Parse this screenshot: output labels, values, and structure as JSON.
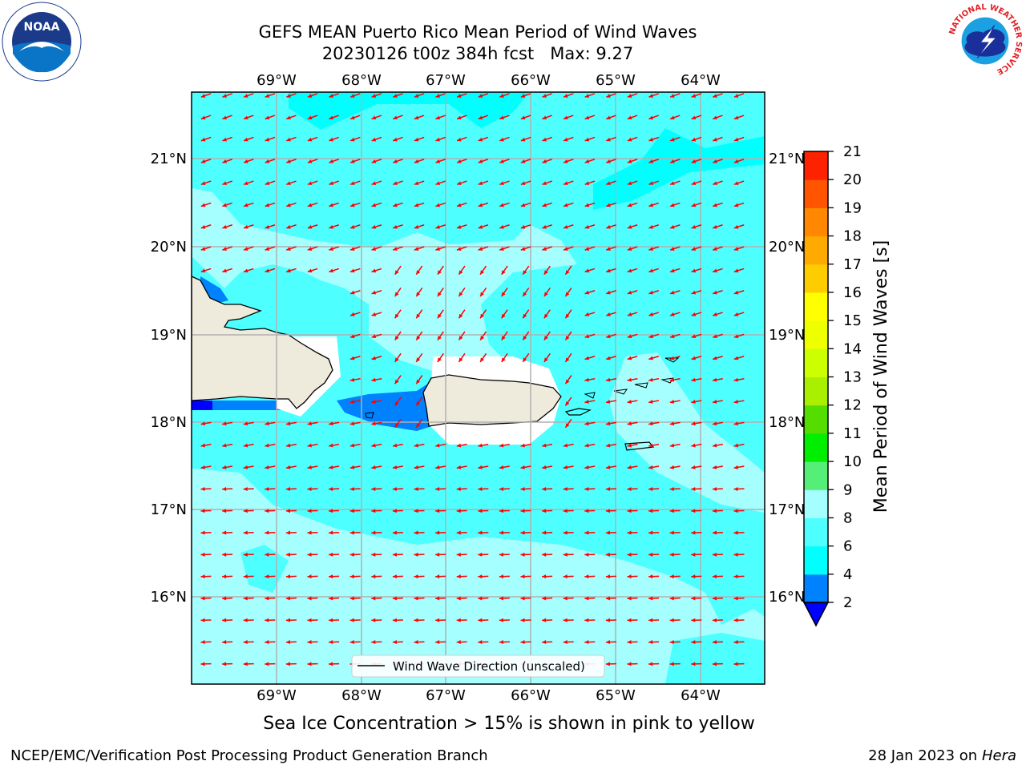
{
  "title": {
    "line1": "GEFS MEAN Puerto Rico Mean Period of Wind Waves",
    "line2_date": "20230126 t00z 384h fcst",
    "line2_max": "Max: 9.27"
  },
  "subtitle": "Sea Ice Concentration > 15% is shown in pink to yellow",
  "footer": {
    "left": "NCEP/EMC/Verification Post Processing Product Generation Branch",
    "right_date": "28 Jan 2023 on",
    "right_host": "Hera"
  },
  "logos": {
    "noaa_text": "NOAA",
    "nws_ring_text": "NATIONAL WEATHER SERVICE"
  },
  "map": {
    "lon_labels": [
      "69°W",
      "68°W",
      "67°W",
      "66°W",
      "65°W",
      "64°W"
    ],
    "lat_labels": [
      "21°N",
      "20°N",
      "19°N",
      "18°N",
      "17°N",
      "16°N"
    ],
    "legend": "Wind Wave Direction (unscaled)",
    "colors": {
      "ocean_6_8": "#4dffff",
      "ocean_8_9": "#a5ffff",
      "ocean_4_6": "#00ffff",
      "ocean_2_4": "#0082ff",
      "land": "#efebdc",
      "arrow": "#ff0000"
    }
  },
  "colorbar": {
    "label": "Mean Period of Wind Waves [s]",
    "ticks": [
      "2",
      "4",
      "6",
      "8",
      "9",
      "10",
      "11",
      "12",
      "13",
      "14",
      "15",
      "16",
      "17",
      "18",
      "19",
      "20",
      "21"
    ],
    "colors": [
      "#0082ff",
      "#00ffff",
      "#4dffff",
      "#a5ffff",
      "#55ee77",
      "#00ee00",
      "#55dd00",
      "#aaee00",
      "#ccff00",
      "#eeff00",
      "#ffff00",
      "#ffcc00",
      "#ffaa00",
      "#ff8800",
      "#ff5500",
      "#ff2200"
    ],
    "under_color": "#0000ff"
  }
}
